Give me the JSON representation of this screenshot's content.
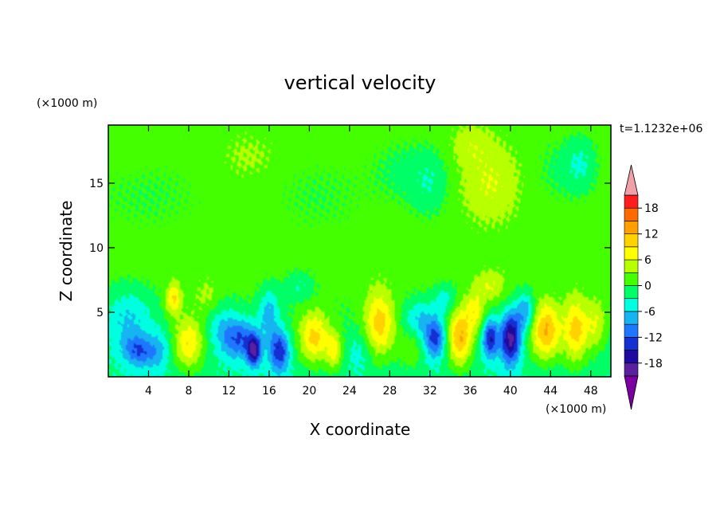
{
  "chart_data": {
    "type": "heatmap",
    "title": "vertical velocity",
    "xlabel": "X coordinate",
    "ylabel": "Z coordinate",
    "x_unit": "(×1000 m)",
    "y_unit": "(×1000 m)",
    "time_label": "t=1.1232e+06",
    "xlim": [
      0,
      50
    ],
    "ylim": [
      0,
      19.5
    ],
    "x_ticks": [
      4,
      8,
      12,
      16,
      20,
      24,
      28,
      32,
      36,
      40,
      44,
      48
    ],
    "y_ticks": [
      5,
      10,
      15
    ],
    "grid": false,
    "legend": "right",
    "colorbar": {
      "levels": [
        -21,
        -18,
        -15,
        -12,
        -9,
        -6,
        -3,
        0,
        3,
        6,
        9,
        12,
        15,
        18,
        21
      ],
      "tick_labels": [
        "-18",
        "-12",
        "-6",
        "0",
        "6",
        "12",
        "18"
      ],
      "tick_values": [
        -18,
        -12,
        -6,
        0,
        6,
        12,
        18
      ],
      "under_color": "#7a00a0",
      "over_color": "#f0a0a8",
      "colors": [
        "#5a20a0",
        "#1e0aa0",
        "#1430d2",
        "#1e78ff",
        "#16b4f0",
        "#00ffe0",
        "#00ff66",
        "#44ff00",
        "#b8ff00",
        "#ffff00",
        "#ffd200",
        "#ffa000",
        "#ff6a00",
        "#ff1e1e"
      ]
    },
    "background_value": 1.5,
    "upper_patches": [
      {
        "x": 4,
        "z": 14,
        "sx": 6,
        "sz": 3,
        "value": -1.5
      },
      {
        "x": 21,
        "z": 14,
        "sx": 5,
        "sz": 3,
        "value": -1.5
      },
      {
        "x": 29,
        "z": 16,
        "sx": 3,
        "sz": 2.5,
        "value": -2
      },
      {
        "x": 32,
        "z": 15,
        "sx": 2,
        "sz": 2.5,
        "value": -4
      },
      {
        "x": 38,
        "z": 15,
        "sx": 3,
        "sz": 3,
        "value": 4.5
      },
      {
        "x": 45,
        "z": 16,
        "sx": 3,
        "sz": 2.5,
        "value": -2
      },
      {
        "x": 47,
        "z": 16.5,
        "sx": 1.5,
        "sz": 2,
        "value": -4
      },
      {
        "x": 2,
        "z": 18,
        "sx": 2,
        "sz": 1.5,
        "value": 1
      },
      {
        "x": 14,
        "z": 17,
        "sx": 3,
        "sz": 2,
        "value": 2
      },
      {
        "x": 36,
        "z": 18,
        "sx": 2,
        "sz": 1.5,
        "value": 3
      }
    ],
    "cells": [
      {
        "x": 3,
        "z": 2,
        "sx": 1.5,
        "sz": 1.2,
        "value": -9
      },
      {
        "x": 2,
        "z": 4.5,
        "sx": 2.5,
        "sz": 2.5,
        "value": -6
      },
      {
        "x": 6.5,
        "z": 6,
        "sx": 0.8,
        "sz": 1.2,
        "value": 9
      },
      {
        "x": 8,
        "z": 2.5,
        "sx": 1.5,
        "sz": 2,
        "value": 10
      },
      {
        "x": 11,
        "z": 4.5,
        "sx": 1.5,
        "sz": 2,
        "value": -4
      },
      {
        "x": 13,
        "z": 3,
        "sx": 1.8,
        "sz": 1.6,
        "value": -11
      },
      {
        "x": 14.5,
        "z": 2,
        "sx": 0.7,
        "sz": 1.2,
        "value": -15
      },
      {
        "x": 17,
        "z": 2,
        "sx": 1,
        "sz": 1.6,
        "value": -13
      },
      {
        "x": 16,
        "z": 5,
        "sx": 1,
        "sz": 2,
        "value": -7
      },
      {
        "x": 20.5,
        "z": 3,
        "sx": 1.5,
        "sz": 2,
        "value": 11
      },
      {
        "x": 22.5,
        "z": 2,
        "sx": 0.8,
        "sz": 1.5,
        "value": 8
      },
      {
        "x": 27,
        "z": 4,
        "sx": 1.5,
        "sz": 2.5,
        "value": 11
      },
      {
        "x": 30,
        "z": 2,
        "sx": 1.2,
        "sz": 1.5,
        "value": 4
      },
      {
        "x": 32.5,
        "z": 3,
        "sx": 1,
        "sz": 1.5,
        "value": -12
      },
      {
        "x": 31,
        "z": 4.5,
        "sx": 1.5,
        "sz": 1.5,
        "value": -6
      },
      {
        "x": 35,
        "z": 3,
        "sx": 1.2,
        "sz": 2.2,
        "value": 13
      },
      {
        "x": 36.5,
        "z": 5,
        "sx": 1,
        "sz": 1.5,
        "value": 7
      },
      {
        "x": 38,
        "z": 3,
        "sx": 0.8,
        "sz": 1.5,
        "value": -14
      },
      {
        "x": 40,
        "z": 3,
        "sx": 1,
        "sz": 2,
        "value": -18
      },
      {
        "x": 41.5,
        "z": 5,
        "sx": 1,
        "sz": 1.5,
        "value": -9
      },
      {
        "x": 43.5,
        "z": 3.5,
        "sx": 1.5,
        "sz": 2.2,
        "value": 13
      },
      {
        "x": 46.5,
        "z": 3.5,
        "sx": 1.2,
        "sz": 2.5,
        "value": 11
      },
      {
        "x": 48.5,
        "z": 4,
        "sx": 1,
        "sz": 2,
        "value": 6
      },
      {
        "x": 25,
        "z": 2,
        "sx": 1.2,
        "sz": 1.5,
        "value": -3
      },
      {
        "x": 10,
        "z": 6,
        "sx": 1.5,
        "sz": 1.5,
        "value": 4
      },
      {
        "x": 5,
        "z": 2,
        "sx": 1.2,
        "sz": 1.5,
        "value": -5
      },
      {
        "x": 33.5,
        "z": 6,
        "sx": 1.2,
        "sz": 1.2,
        "value": -5
      },
      {
        "x": 19,
        "z": 7,
        "sx": 1.5,
        "sz": 1.2,
        "value": -4
      },
      {
        "x": 38,
        "z": 7,
        "sx": 1.5,
        "sz": 1.2,
        "value": 5
      }
    ]
  }
}
